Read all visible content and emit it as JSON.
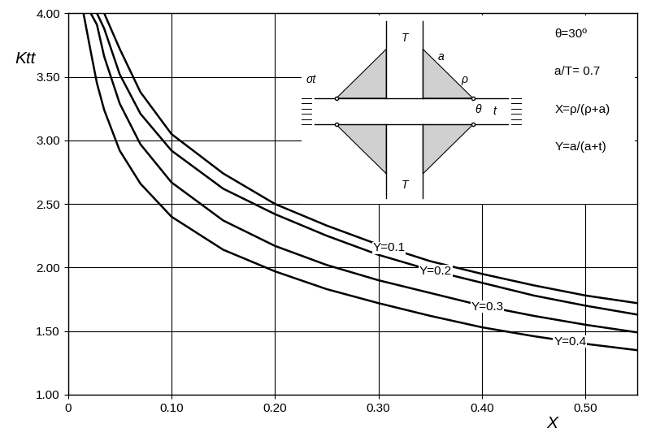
{
  "chart_data": {
    "type": "line",
    "x_label": "X",
    "y_label": "Ktt",
    "x": [
      0.015,
      0.022,
      0.028,
      0.035,
      0.05,
      0.07,
      0.1,
      0.15,
      0.2,
      0.25,
      0.3,
      0.35,
      0.4,
      0.45,
      0.5,
      0.55
    ],
    "series": [
      {
        "name": "Y=0.1",
        "color": "#000000",
        "values": [
          null,
          null,
          null,
          4.0,
          3.72,
          3.38,
          3.05,
          2.74,
          2.5,
          2.33,
          2.18,
          2.05,
          1.95,
          1.86,
          1.78,
          1.72
        ]
      },
      {
        "name": "Y=0.2",
        "color": "#000000",
        "values": [
          null,
          null,
          4.0,
          3.88,
          3.52,
          3.21,
          2.92,
          2.62,
          2.42,
          2.25,
          2.1,
          1.98,
          1.88,
          1.78,
          1.7,
          1.63
        ]
      },
      {
        "name": "Y=0.3",
        "color": "#000000",
        "values": [
          null,
          4.0,
          3.91,
          3.66,
          3.29,
          2.97,
          2.67,
          2.37,
          2.17,
          2.02,
          1.9,
          1.8,
          1.7,
          1.62,
          1.55,
          1.49
        ]
      },
      {
        "name": "Y=0.4",
        "color": "#000000",
        "values": [
          4.0,
          3.7,
          3.45,
          3.24,
          2.92,
          2.66,
          2.4,
          2.14,
          1.97,
          1.83,
          1.72,
          1.62,
          1.53,
          1.46,
          1.4,
          1.35
        ]
      }
    ],
    "xlim": [
      0,
      0.55
    ],
    "ylim": [
      1.0,
      4.0
    ],
    "xticks": [
      0,
      {
        "value": 0.1,
        "label": "0.10"
      },
      {
        "value": 0.2,
        "label": "0.20"
      },
      {
        "value": 0.3,
        "label": "0.30"
      },
      {
        "value": 0.4,
        "label": "0.40"
      },
      {
        "value": 0.5,
        "label": "0.50"
      }
    ],
    "yticks": [
      {
        "value": 1.0,
        "label": "1.00"
      },
      {
        "value": 1.5,
        "label": "1.50"
      },
      {
        "value": 2.0,
        "label": "2.00"
      },
      {
        "value": 2.5,
        "label": "2.50"
      },
      {
        "value": 3.0,
        "label": "3.00"
      },
      {
        "value": 3.5,
        "label": "3.50"
      },
      {
        "value": 4.0,
        "label": "4.00"
      }
    ],
    "grid": true,
    "annotations": [
      "θ=30º",
      "a/T= 0.7",
      "X=ρ/(ρ+a)",
      "Y=a/(a+t)"
    ],
    "diagram_labels": [
      "σt",
      "T",
      "T",
      "a",
      "ρ",
      "θ",
      "t"
    ]
  }
}
